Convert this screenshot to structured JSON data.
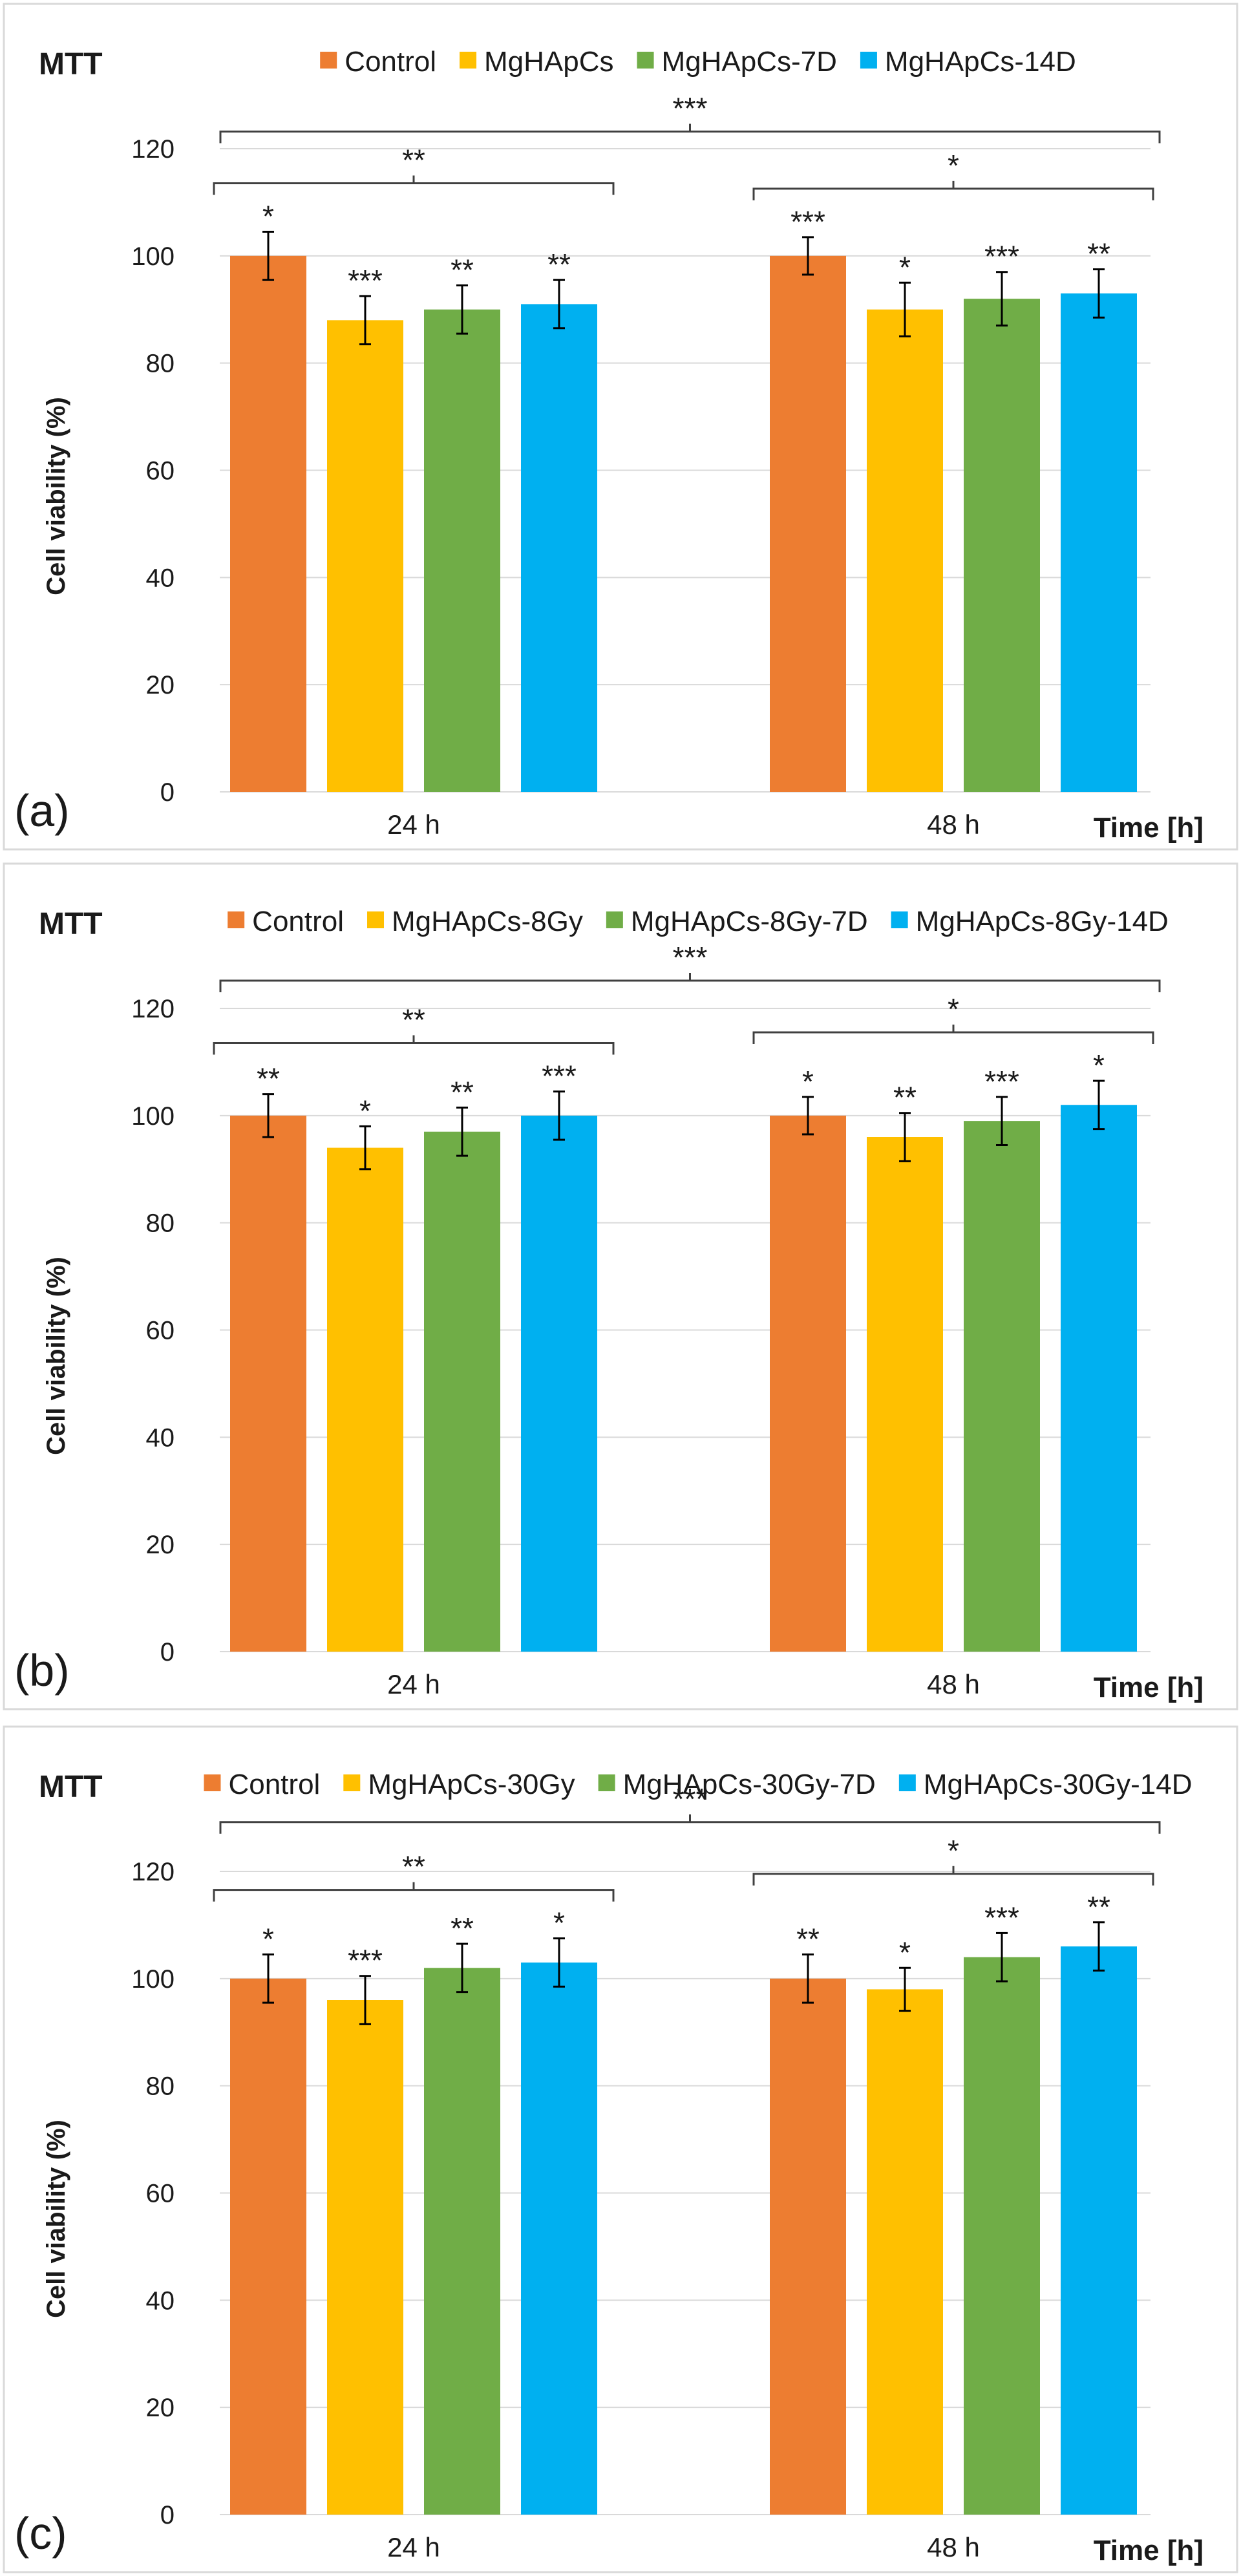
{
  "chart_data": [
    {
      "type": "bar",
      "panel_label": "(a)",
      "title": "MTT",
      "ylabel": "Cell viability (%)",
      "xlabel": "Time [h]",
      "ylim": [
        0,
        120
      ],
      "yticks": [
        0,
        20,
        40,
        60,
        80,
        100,
        120
      ],
      "grid": true,
      "legend_position": "top",
      "categories": [
        "24 h",
        "48 h"
      ],
      "series": [
        {
          "name": "Control",
          "color": "#ED7D31",
          "values": [
            100,
            100
          ],
          "errors": [
            4.5,
            3.5
          ],
          "significance": [
            "*",
            "***"
          ]
        },
        {
          "name": "MgHApCs",
          "color": "#FFC000",
          "values": [
            88,
            90
          ],
          "errors": [
            4.5,
            5
          ],
          "significance": [
            "***",
            "*"
          ]
        },
        {
          "name": "MgHApCs-7D",
          "color": "#70AD47",
          "values": [
            90,
            92
          ],
          "errors": [
            4.5,
            5
          ],
          "significance": [
            "**",
            "***"
          ]
        },
        {
          "name": "MgHApCs-14D",
          "color": "#00B0F0",
          "values": [
            91,
            93
          ],
          "errors": [
            4.5,
            4.5
          ],
          "significance": [
            "**",
            "**"
          ]
        }
      ],
      "brackets": [
        {
          "level": "outer",
          "label": "***"
        },
        {
          "level": "group",
          "category": 0,
          "label": "**"
        },
        {
          "level": "group",
          "category": 1,
          "label": "*"
        }
      ]
    },
    {
      "type": "bar",
      "panel_label": "(b)",
      "title": "MTT",
      "ylabel": "Cell viability (%)",
      "xlabel": "Time [h]",
      "ylim": [
        0,
        120
      ],
      "yticks": [
        0,
        20,
        40,
        60,
        80,
        100,
        120
      ],
      "grid": true,
      "legend_position": "top",
      "categories": [
        "24 h",
        "48 h"
      ],
      "series": [
        {
          "name": "Control",
          "color": "#ED7D31",
          "values": [
            100,
            100
          ],
          "errors": [
            4,
            3.5
          ],
          "significance": [
            "**",
            "*"
          ]
        },
        {
          "name": "MgHApCs-8Gy",
          "color": "#FFC000",
          "values": [
            94,
            96
          ],
          "errors": [
            4,
            4.5
          ],
          "significance": [
            "*",
            "**"
          ]
        },
        {
          "name": "MgHApCs-8Gy-7D",
          "color": "#70AD47",
          "values": [
            97,
            99
          ],
          "errors": [
            4.5,
            4.5
          ],
          "significance": [
            "**",
            "***"
          ]
        },
        {
          "name": "MgHApCs-8Gy-14D",
          "color": "#00B0F0",
          "values": [
            100,
            102
          ],
          "errors": [
            4.5,
            4.5
          ],
          "significance": [
            "***",
            "*"
          ]
        }
      ],
      "brackets": [
        {
          "level": "outer",
          "label": "***"
        },
        {
          "level": "group",
          "category": 0,
          "label": "**"
        },
        {
          "level": "group",
          "category": 1,
          "label": "*"
        }
      ]
    },
    {
      "type": "bar",
      "panel_label": "(c)",
      "title": "MTT",
      "ylabel": "Cell viability (%)",
      "xlabel": "Time [h]",
      "ylim": [
        0,
        120
      ],
      "yticks": [
        0,
        20,
        40,
        60,
        80,
        100,
        120
      ],
      "grid": true,
      "legend_position": "top",
      "categories": [
        "24 h",
        "48 h"
      ],
      "series": [
        {
          "name": "Control",
          "color": "#ED7D31",
          "values": [
            100,
            100
          ],
          "errors": [
            4.5,
            4.5
          ],
          "significance": [
            "*",
            "**"
          ]
        },
        {
          "name": "MgHApCs-30Gy",
          "color": "#FFC000",
          "values": [
            96,
            98
          ],
          "errors": [
            4.5,
            4
          ],
          "significance": [
            "***",
            "*"
          ]
        },
        {
          "name": "MgHApCs-30Gy-7D",
          "color": "#70AD47",
          "values": [
            102,
            104
          ],
          "errors": [
            4.5,
            4.5
          ],
          "significance": [
            "**",
            "***"
          ]
        },
        {
          "name": "MgHApCs-30Gy-14D",
          "color": "#00B0F0",
          "values": [
            103,
            106
          ],
          "errors": [
            4.5,
            4.5
          ],
          "significance": [
            "*",
            "**"
          ]
        }
      ],
      "brackets": [
        {
          "level": "outer",
          "label": "***"
        },
        {
          "level": "group",
          "category": 0,
          "label": "**"
        },
        {
          "level": "group",
          "category": 1,
          "label": "*"
        }
      ]
    }
  ]
}
